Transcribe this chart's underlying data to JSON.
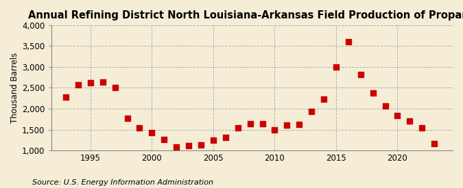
{
  "title": "Annual Refining District North Louisiana-Arkansas Field Production of Propane",
  "ylabel": "Thousand Barrels",
  "source": "Source: U.S. Energy Information Administration",
  "years": [
    1993,
    1994,
    1995,
    1996,
    1997,
    1998,
    1999,
    2000,
    2001,
    2002,
    2003,
    2004,
    2005,
    2006,
    2007,
    2008,
    2009,
    2010,
    2011,
    2012,
    2013,
    2014,
    2015,
    2016,
    2017,
    2018,
    2019,
    2020,
    2021,
    2022,
    2023
  ],
  "values": [
    2280,
    2580,
    2620,
    2630,
    2510,
    1770,
    1540,
    1420,
    1260,
    1090,
    1110,
    1130,
    1250,
    1320,
    1540,
    1640,
    1640,
    1500,
    1610,
    1620,
    1940,
    2230,
    3000,
    3600,
    2820,
    2380,
    2070,
    1840,
    1700,
    1540,
    1170
  ],
  "marker_color": "#cc0000",
  "marker_size": 28,
  "bg_color": "#f5edd6",
  "grid_color": "#b0b0b0",
  "ylim": [
    1000,
    4000
  ],
  "yticks": [
    1000,
    1500,
    2000,
    2500,
    3000,
    3500,
    4000
  ],
  "ytick_labels": [
    "1,000",
    "1,500",
    "2,000",
    "2,500",
    "3,000",
    "3,500",
    "4,000"
  ],
  "xlim_left": 1991.8,
  "xlim_right": 2024.5,
  "xticks": [
    1995,
    2000,
    2005,
    2010,
    2015,
    2020
  ],
  "title_fontsize": 10.5,
  "axis_fontsize": 8.5,
  "source_fontsize": 8
}
